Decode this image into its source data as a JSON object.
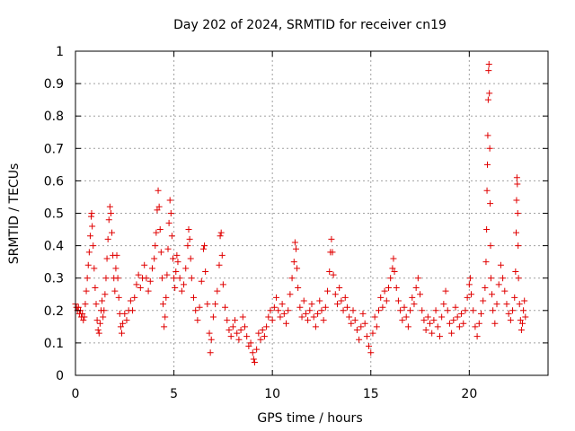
{
  "chart_data": {
    "type": "scatter",
    "title": "Day 202 of 2024, SRMTID for receiver cn19",
    "xlabel": "GPS time / hours",
    "ylabel": "SRMTID / TECUs",
    "xlim": [
      0,
      24
    ],
    "ylim": [
      0,
      1
    ],
    "xticks": [
      0,
      5,
      10,
      15,
      20
    ],
    "xtick_labels": [
      "0",
      "5",
      "10",
      "15",
      "20"
    ],
    "yticks": [
      0,
      0.1,
      0.2,
      0.3,
      0.4,
      0.5,
      0.6,
      0.7,
      0.8,
      0.9,
      1
    ],
    "ytick_labels": [
      "0",
      "0.1",
      "0.2",
      "0.3",
      "0.4",
      "0.5",
      "0.6",
      "0.7",
      "0.8",
      "0.9",
      "1"
    ],
    "grid": true,
    "marker": "+",
    "color": "#e00000",
    "series": [
      {
        "name": "SRMTID",
        "points": [
          [
            0.0,
            0.22
          ],
          [
            0.05,
            0.21
          ],
          [
            0.1,
            0.2
          ],
          [
            0.15,
            0.21
          ],
          [
            0.2,
            0.19
          ],
          [
            0.25,
            0.2
          ],
          [
            0.3,
            0.18
          ],
          [
            0.35,
            0.19
          ],
          [
            0.4,
            0.17
          ],
          [
            0.45,
            0.18
          ],
          [
            0.5,
            0.22
          ],
          [
            0.55,
            0.26
          ],
          [
            0.6,
            0.3
          ],
          [
            0.65,
            0.34
          ],
          [
            0.7,
            0.38
          ],
          [
            0.75,
            0.43
          ],
          [
            0.8,
            0.49
          ],
          [
            0.82,
            0.5
          ],
          [
            0.85,
            0.46
          ],
          [
            0.9,
            0.4
          ],
          [
            0.95,
            0.33
          ],
          [
            1.0,
            0.27
          ],
          [
            1.05,
            0.22
          ],
          [
            1.1,
            0.17
          ],
          [
            1.15,
            0.14
          ],
          [
            1.2,
            0.13
          ],
          [
            1.25,
            0.16
          ],
          [
            1.3,
            0.2
          ],
          [
            1.35,
            0.23
          ],
          [
            1.4,
            0.18
          ],
          [
            1.45,
            0.2
          ],
          [
            1.5,
            0.25
          ],
          [
            1.55,
            0.3
          ],
          [
            1.6,
            0.36
          ],
          [
            1.65,
            0.42
          ],
          [
            1.7,
            0.48
          ],
          [
            1.75,
            0.52
          ],
          [
            1.8,
            0.5
          ],
          [
            1.85,
            0.44
          ],
          [
            1.9,
            0.37
          ],
          [
            1.95,
            0.3
          ],
          [
            2.0,
            0.26
          ],
          [
            2.05,
            0.33
          ],
          [
            2.1,
            0.37
          ],
          [
            2.15,
            0.3
          ],
          [
            2.2,
            0.24
          ],
          [
            2.25,
            0.19
          ],
          [
            2.3,
            0.15
          ],
          [
            2.35,
            0.13
          ],
          [
            2.4,
            0.16
          ],
          [
            2.5,
            0.19
          ],
          [
            2.6,
            0.17
          ],
          [
            2.7,
            0.2
          ],
          [
            2.8,
            0.23
          ],
          [
            2.9,
            0.2
          ],
          [
            3.0,
            0.24
          ],
          [
            3.1,
            0.28
          ],
          [
            3.2,
            0.31
          ],
          [
            3.3,
            0.27
          ],
          [
            3.4,
            0.3
          ],
          [
            3.5,
            0.34
          ],
          [
            3.6,
            0.3
          ],
          [
            3.7,
            0.26
          ],
          [
            3.8,
            0.29
          ],
          [
            3.9,
            0.33
          ],
          [
            4.0,
            0.36
          ],
          [
            4.05,
            0.4
          ],
          [
            4.1,
            0.44
          ],
          [
            4.15,
            0.51
          ],
          [
            4.2,
            0.57
          ],
          [
            4.25,
            0.52
          ],
          [
            4.3,
            0.45
          ],
          [
            4.35,
            0.38
          ],
          [
            4.4,
            0.3
          ],
          [
            4.45,
            0.22
          ],
          [
            4.5,
            0.15
          ],
          [
            4.55,
            0.18
          ],
          [
            4.6,
            0.24
          ],
          [
            4.65,
            0.31
          ],
          [
            4.7,
            0.39
          ],
          [
            4.75,
            0.47
          ],
          [
            4.8,
            0.54
          ],
          [
            4.85,
            0.5
          ],
          [
            4.9,
            0.43
          ],
          [
            4.95,
            0.36
          ],
          [
            5.0,
            0.3
          ],
          [
            5.05,
            0.27
          ],
          [
            5.1,
            0.32
          ],
          [
            5.15,
            0.37
          ],
          [
            5.2,
            0.35
          ],
          [
            5.3,
            0.3
          ],
          [
            5.4,
            0.26
          ],
          [
            5.5,
            0.28
          ],
          [
            5.6,
            0.33
          ],
          [
            5.7,
            0.4
          ],
          [
            5.75,
            0.45
          ],
          [
            5.8,
            0.42
          ],
          [
            5.85,
            0.36
          ],
          [
            5.9,
            0.3
          ],
          [
            6.0,
            0.24
          ],
          [
            6.1,
            0.2
          ],
          [
            6.2,
            0.17
          ],
          [
            6.3,
            0.21
          ],
          [
            6.4,
            0.29
          ],
          [
            6.5,
            0.39
          ],
          [
            6.55,
            0.4
          ],
          [
            6.6,
            0.32
          ],
          [
            6.7,
            0.22
          ],
          [
            6.8,
            0.13
          ],
          [
            6.85,
            0.07
          ],
          [
            6.9,
            0.11
          ],
          [
            7.0,
            0.18
          ],
          [
            7.1,
            0.22
          ],
          [
            7.2,
            0.26
          ],
          [
            7.3,
            0.34
          ],
          [
            7.35,
            0.43
          ],
          [
            7.4,
            0.44
          ],
          [
            7.45,
            0.37
          ],
          [
            7.5,
            0.28
          ],
          [
            7.6,
            0.21
          ],
          [
            7.7,
            0.17
          ],
          [
            7.8,
            0.14
          ],
          [
            7.9,
            0.12
          ],
          [
            8.0,
            0.15
          ],
          [
            8.1,
            0.17
          ],
          [
            8.2,
            0.13
          ],
          [
            8.3,
            0.11
          ],
          [
            8.4,
            0.14
          ],
          [
            8.5,
            0.18
          ],
          [
            8.6,
            0.15
          ],
          [
            8.7,
            0.12
          ],
          [
            8.8,
            0.09
          ],
          [
            8.9,
            0.1
          ],
          [
            9.0,
            0.07
          ],
          [
            9.05,
            0.05
          ],
          [
            9.1,
            0.04
          ],
          [
            9.2,
            0.08
          ],
          [
            9.3,
            0.13
          ],
          [
            9.4,
            0.11
          ],
          [
            9.5,
            0.14
          ],
          [
            9.6,
            0.12
          ],
          [
            9.7,
            0.15
          ],
          [
            9.8,
            0.18
          ],
          [
            9.9,
            0.2
          ],
          [
            10.0,
            0.17
          ],
          [
            10.1,
            0.21
          ],
          [
            10.2,
            0.24
          ],
          [
            10.3,
            0.2
          ],
          [
            10.4,
            0.18
          ],
          [
            10.5,
            0.22
          ],
          [
            10.6,
            0.19
          ],
          [
            10.7,
            0.16
          ],
          [
            10.8,
            0.2
          ],
          [
            10.9,
            0.25
          ],
          [
            11.0,
            0.3
          ],
          [
            11.1,
            0.35
          ],
          [
            11.15,
            0.41
          ],
          [
            11.2,
            0.39
          ],
          [
            11.25,
            0.33
          ],
          [
            11.3,
            0.27
          ],
          [
            11.4,
            0.21
          ],
          [
            11.5,
            0.18
          ],
          [
            11.6,
            0.23
          ],
          [
            11.7,
            0.19
          ],
          [
            11.8,
            0.17
          ],
          [
            11.9,
            0.2
          ],
          [
            12.0,
            0.22
          ],
          [
            12.1,
            0.18
          ],
          [
            12.2,
            0.15
          ],
          [
            12.3,
            0.19
          ],
          [
            12.4,
            0.23
          ],
          [
            12.5,
            0.2
          ],
          [
            12.6,
            0.17
          ],
          [
            12.7,
            0.21
          ],
          [
            12.8,
            0.26
          ],
          [
            12.9,
            0.32
          ],
          [
            12.95,
            0.38
          ],
          [
            13.0,
            0.42
          ],
          [
            13.05,
            0.38
          ],
          [
            13.1,
            0.31
          ],
          [
            13.2,
            0.25
          ],
          [
            13.3,
            0.22
          ],
          [
            13.4,
            0.27
          ],
          [
            13.5,
            0.23
          ],
          [
            13.6,
            0.2
          ],
          [
            13.7,
            0.24
          ],
          [
            13.8,
            0.21
          ],
          [
            13.9,
            0.18
          ],
          [
            14.0,
            0.16
          ],
          [
            14.1,
            0.2
          ],
          [
            14.2,
            0.17
          ],
          [
            14.3,
            0.14
          ],
          [
            14.4,
            0.11
          ],
          [
            14.5,
            0.15
          ],
          [
            14.6,
            0.19
          ],
          [
            14.7,
            0.16
          ],
          [
            14.8,
            0.12
          ],
          [
            14.9,
            0.09
          ],
          [
            15.0,
            0.07
          ],
          [
            15.1,
            0.13
          ],
          [
            15.2,
            0.18
          ],
          [
            15.3,
            0.15
          ],
          [
            15.4,
            0.2
          ],
          [
            15.5,
            0.24
          ],
          [
            15.6,
            0.21
          ],
          [
            15.7,
            0.26
          ],
          [
            15.8,
            0.23
          ],
          [
            15.9,
            0.27
          ],
          [
            16.0,
            0.3
          ],
          [
            16.1,
            0.33
          ],
          [
            16.15,
            0.36
          ],
          [
            16.2,
            0.32
          ],
          [
            16.3,
            0.27
          ],
          [
            16.4,
            0.23
          ],
          [
            16.5,
            0.2
          ],
          [
            16.6,
            0.17
          ],
          [
            16.7,
            0.21
          ],
          [
            16.8,
            0.18
          ],
          [
            16.9,
            0.15
          ],
          [
            17.0,
            0.2
          ],
          [
            17.1,
            0.24
          ],
          [
            17.2,
            0.22
          ],
          [
            17.3,
            0.27
          ],
          [
            17.4,
            0.3
          ],
          [
            17.5,
            0.25
          ],
          [
            17.6,
            0.2
          ],
          [
            17.7,
            0.17
          ],
          [
            17.8,
            0.14
          ],
          [
            17.9,
            0.18
          ],
          [
            18.0,
            0.16
          ],
          [
            18.1,
            0.13
          ],
          [
            18.2,
            0.17
          ],
          [
            18.3,
            0.2
          ],
          [
            18.4,
            0.15
          ],
          [
            18.5,
            0.12
          ],
          [
            18.6,
            0.18
          ],
          [
            18.7,
            0.22
          ],
          [
            18.8,
            0.26
          ],
          [
            18.9,
            0.2
          ],
          [
            19.0,
            0.16
          ],
          [
            19.1,
            0.13
          ],
          [
            19.2,
            0.17
          ],
          [
            19.3,
            0.21
          ],
          [
            19.4,
            0.18
          ],
          [
            19.5,
            0.15
          ],
          [
            19.6,
            0.19
          ],
          [
            19.7,
            0.16
          ],
          [
            19.8,
            0.2
          ],
          [
            19.9,
            0.24
          ],
          [
            20.0,
            0.28
          ],
          [
            20.05,
            0.3
          ],
          [
            20.1,
            0.25
          ],
          [
            20.2,
            0.2
          ],
          [
            20.3,
            0.15
          ],
          [
            20.4,
            0.12
          ],
          [
            20.5,
            0.16
          ],
          [
            20.6,
            0.19
          ],
          [
            20.7,
            0.23
          ],
          [
            20.8,
            0.27
          ],
          [
            20.85,
            0.35
          ],
          [
            20.88,
            0.45
          ],
          [
            20.9,
            0.57
          ],
          [
            20.92,
            0.65
          ],
          [
            20.94,
            0.74
          ],
          [
            20.96,
            0.85
          ],
          [
            20.98,
            0.94
          ],
          [
            21.0,
            0.96
          ],
          [
            21.02,
            0.87
          ],
          [
            21.04,
            0.7
          ],
          [
            21.06,
            0.53
          ],
          [
            21.08,
            0.4
          ],
          [
            21.1,
            0.3
          ],
          [
            21.15,
            0.25
          ],
          [
            21.2,
            0.2
          ],
          [
            21.3,
            0.16
          ],
          [
            21.4,
            0.22
          ],
          [
            21.5,
            0.28
          ],
          [
            21.6,
            0.34
          ],
          [
            21.7,
            0.3
          ],
          [
            21.8,
            0.26
          ],
          [
            21.9,
            0.22
          ],
          [
            22.0,
            0.19
          ],
          [
            22.1,
            0.17
          ],
          [
            22.2,
            0.2
          ],
          [
            22.3,
            0.24
          ],
          [
            22.35,
            0.32
          ],
          [
            22.38,
            0.44
          ],
          [
            22.4,
            0.54
          ],
          [
            22.42,
            0.61
          ],
          [
            22.44,
            0.59
          ],
          [
            22.46,
            0.5
          ],
          [
            22.48,
            0.4
          ],
          [
            22.5,
            0.3
          ],
          [
            22.55,
            0.22
          ],
          [
            22.6,
            0.17
          ],
          [
            22.65,
            0.14
          ],
          [
            22.7,
            0.16
          ],
          [
            22.75,
            0.2
          ],
          [
            22.8,
            0.23
          ],
          [
            22.85,
            0.18
          ]
        ]
      }
    ]
  }
}
